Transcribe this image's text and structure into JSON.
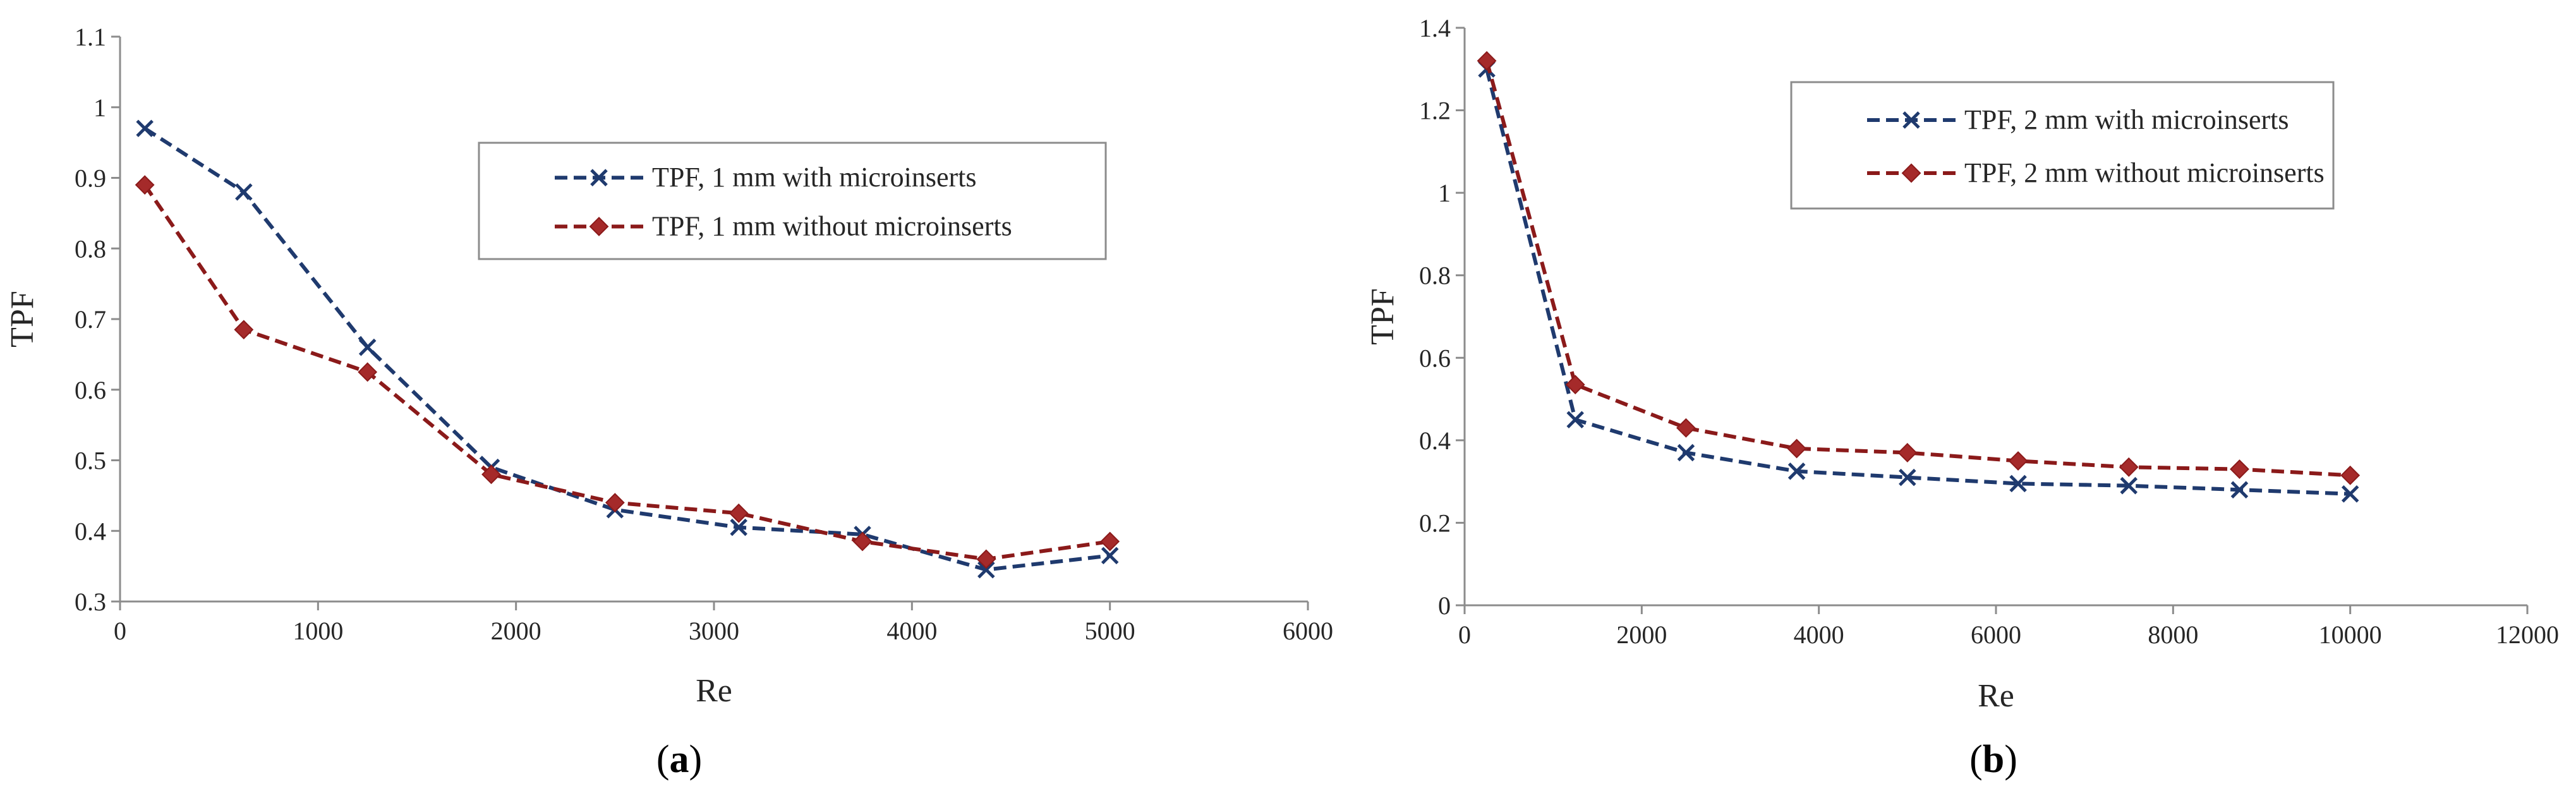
{
  "colors": {
    "series_with": "#1f3a6e",
    "series_without": "#8b1a1a",
    "marker_without_fill": "#a52a2a",
    "axis": "#8c8c8c"
  },
  "chart_data": [
    {
      "id": "a",
      "type": "line",
      "panel_label": "a",
      "title": "",
      "xlabel": "Re",
      "ylabel": "TPF",
      "xlim": [
        0,
        6000
      ],
      "ylim": [
        0.3,
        1.1
      ],
      "xticks": [
        0,
        1000,
        2000,
        3000,
        4000,
        5000,
        6000
      ],
      "yticks": [
        0.3,
        0.4,
        0.5,
        0.6,
        0.7,
        0.8,
        0.9,
        1,
        1.1
      ],
      "grid": false,
      "legend_position": "top-right",
      "series": [
        {
          "name": "TPF, 1 mm with microinserts",
          "color": "#1f3a6e",
          "marker": "x",
          "line": "dashed",
          "x": [
            125,
            625,
            1250,
            1875,
            2500,
            3125,
            3750,
            4375,
            5000
          ],
          "y": [
            0.97,
            0.88,
            0.66,
            0.49,
            0.43,
            0.405,
            0.395,
            0.345,
            0.365
          ]
        },
        {
          "name": "TPF, 1 mm without microinserts",
          "color": "#8b1a1a",
          "marker": "diamond",
          "line": "dashed",
          "x": [
            125,
            625,
            1250,
            1875,
            2500,
            3125,
            3750,
            4375,
            5000
          ],
          "y": [
            0.89,
            0.685,
            0.625,
            0.48,
            0.44,
            0.425,
            0.385,
            0.36,
            0.385
          ]
        }
      ]
    },
    {
      "id": "b",
      "type": "line",
      "panel_label": "b",
      "title": "",
      "xlabel": "Re",
      "ylabel": "TPF",
      "xlim": [
        0,
        12000
      ],
      "ylim": [
        0,
        1.4
      ],
      "xticks": [
        0,
        2000,
        4000,
        6000,
        8000,
        10000,
        12000
      ],
      "yticks": [
        0,
        0.2,
        0.4,
        0.6,
        0.8,
        1,
        1.2,
        1.4
      ],
      "grid": false,
      "legend_position": "top-right",
      "series": [
        {
          "name": "TPF, 2 mm with microinserts",
          "color": "#1f3a6e",
          "marker": "x",
          "line": "dashed",
          "x": [
            250,
            1250,
            2500,
            3750,
            5000,
            6250,
            7500,
            8750,
            10000
          ],
          "y": [
            1.3,
            0.45,
            0.37,
            0.325,
            0.31,
            0.295,
            0.29,
            0.28,
            0.27
          ]
        },
        {
          "name": "TPF, 2 mm without microinserts",
          "color": "#8b1a1a",
          "marker": "diamond",
          "line": "dashed",
          "x": [
            250,
            1250,
            2500,
            3750,
            5000,
            6250,
            7500,
            8750,
            10000
          ],
          "y": [
            1.32,
            0.535,
            0.43,
            0.38,
            0.37,
            0.35,
            0.335,
            0.33,
            0.315
          ]
        }
      ]
    }
  ]
}
